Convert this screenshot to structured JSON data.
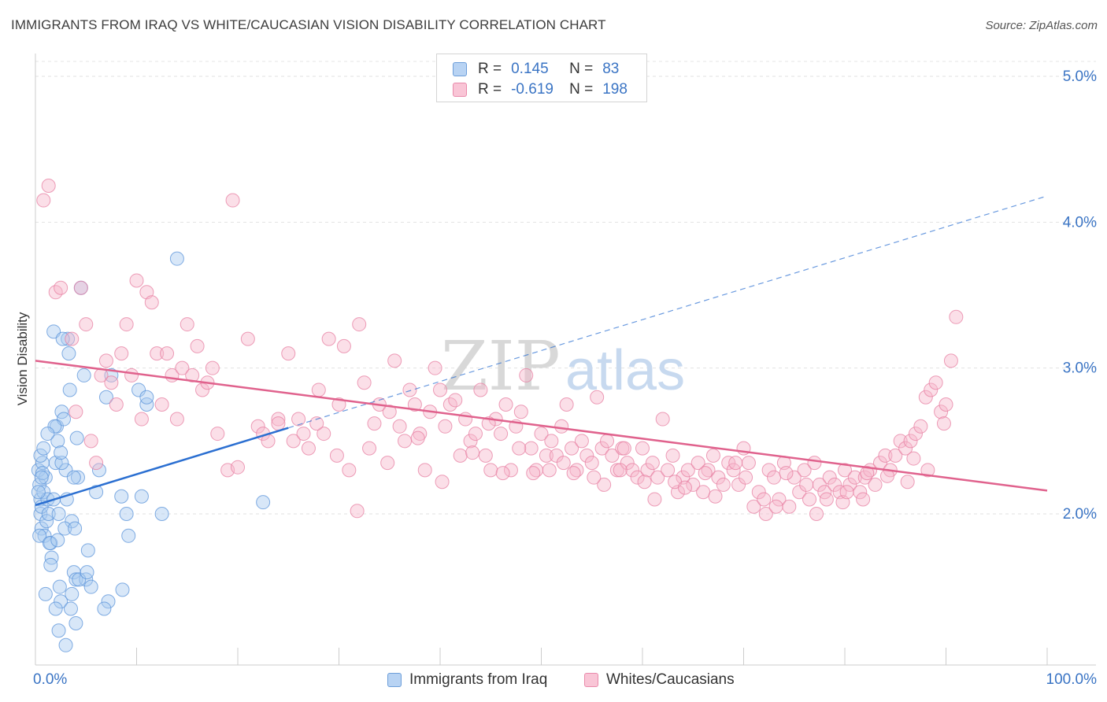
{
  "title": "IMMIGRANTS FROM IRAQ VS WHITE/CAUCASIAN VISION DISABILITY CORRELATION CHART",
  "source": "Source: ZipAtlas.com",
  "legend": {
    "r_label": "R =",
    "n_label": "N =",
    "rows": [
      {
        "r": "0.145",
        "n": "83"
      },
      {
        "r": "-0.619",
        "n": "198"
      }
    ]
  },
  "chart_data": {
    "type": "scatter",
    "title": "IMMIGRANTS FROM IRAQ VS WHITE/CAUCASIAN VISION DISABILITY CORRELATION CHART",
    "xlabel": "",
    "ylabel": "Vision Disability",
    "xlim": [
      0,
      100
    ],
    "ylim": [
      1.0,
      5.2
    ],
    "x_tick_labels": [
      "0.0%",
      "100.0%"
    ],
    "y_ticks": [
      2.0,
      3.0,
      4.0,
      5.0
    ],
    "y_tick_labels": [
      "2.0%",
      "3.0%",
      "4.0%",
      "5.0%"
    ],
    "grid": true,
    "legend_position": "top-center",
    "series": [
      {
        "name": "Immigrants from Iraq",
        "color": "#a9c9f0",
        "stroke": "#5a93d9",
        "line_color": "#2b6fd1",
        "trend": {
          "x0": 0.0,
          "y0": 2.06,
          "x1": 25.0,
          "y1": 2.59,
          "dash_x1": 100.0,
          "dash_y1": 4.18
        },
        "points": [
          [
            0.3,
            2.3
          ],
          [
            0.4,
            2.2
          ],
          [
            0.5,
            2.1
          ],
          [
            0.5,
            2.0
          ],
          [
            0.6,
            1.9
          ],
          [
            0.7,
            2.35
          ],
          [
            0.8,
            2.15
          ],
          [
            0.6,
            2.05
          ],
          [
            0.9,
            1.85
          ],
          [
            1.0,
            2.25
          ],
          [
            1.1,
            1.95
          ],
          [
            1.2,
            2.1
          ],
          [
            1.3,
            2.0
          ],
          [
            0.4,
            1.85
          ],
          [
            0.7,
            2.28
          ],
          [
            0.5,
            2.4
          ],
          [
            1.5,
            1.8
          ],
          [
            1.6,
            1.7
          ],
          [
            1.8,
            2.1
          ],
          [
            2.0,
            2.35
          ],
          [
            2.1,
            2.6
          ],
          [
            2.2,
            2.5
          ],
          [
            2.3,
            2.0
          ],
          [
            2.4,
            1.5
          ],
          [
            2.5,
            1.4
          ],
          [
            2.6,
            2.7
          ],
          [
            2.8,
            2.65
          ],
          [
            3.0,
            2.3
          ],
          [
            3.2,
            3.2
          ],
          [
            3.4,
            2.85
          ],
          [
            3.6,
            1.95
          ],
          [
            3.8,
            1.6
          ],
          [
            4.0,
            1.55
          ],
          [
            4.2,
            2.25
          ],
          [
            4.5,
            3.55
          ],
          [
            4.8,
            2.95
          ],
          [
            5.0,
            1.55
          ],
          [
            5.2,
            1.75
          ],
          [
            5.5,
            1.5
          ],
          [
            6.0,
            2.15
          ],
          [
            6.3,
            2.3
          ],
          [
            2.0,
            1.35
          ],
          [
            2.3,
            1.2
          ],
          [
            3.0,
            1.1
          ],
          [
            3.5,
            1.35
          ],
          [
            4.0,
            1.25
          ],
          [
            7.0,
            2.8
          ],
          [
            7.2,
            1.4
          ],
          [
            7.5,
            2.95
          ],
          [
            8.5,
            2.12
          ],
          [
            9.0,
            2.0
          ],
          [
            9.2,
            1.85
          ],
          [
            10.5,
            2.12
          ],
          [
            11.0,
            2.75
          ],
          [
            12.5,
            2.0
          ],
          [
            14.0,
            3.75
          ],
          [
            22.5,
            2.08
          ],
          [
            1.8,
            3.25
          ],
          [
            2.7,
            3.2
          ],
          [
            3.3,
            3.1
          ],
          [
            1.0,
            1.45
          ],
          [
            1.5,
            1.65
          ],
          [
            2.9,
            1.9
          ],
          [
            3.8,
            2.25
          ],
          [
            0.8,
            2.45
          ],
          [
            1.9,
            2.6
          ],
          [
            2.6,
            2.35
          ],
          [
            3.1,
            2.1
          ],
          [
            3.9,
            1.9
          ],
          [
            4.3,
            1.55
          ],
          [
            10.2,
            2.85
          ],
          [
            11.0,
            2.8
          ],
          [
            0.3,
            2.15
          ],
          [
            0.6,
            2.25
          ],
          [
            1.4,
            1.8
          ],
          [
            2.2,
            1.82
          ],
          [
            3.6,
            1.45
          ],
          [
            4.1,
            2.52
          ],
          [
            5.1,
            1.6
          ],
          [
            8.6,
            1.48
          ],
          [
            1.2,
            2.55
          ],
          [
            2.5,
            2.42
          ],
          [
            6.8,
            1.35
          ]
        ]
      },
      {
        "name": "Whites/Caucasians",
        "color": "#f7b9cd",
        "stroke": "#e77fa2",
        "line_color": "#e0628d",
        "trend": {
          "x0": 0.0,
          "y0": 3.05,
          "x1": 100.0,
          "y1": 2.16
        },
        "points": [
          [
            0.8,
            4.15
          ],
          [
            1.3,
            4.25
          ],
          [
            2.0,
            3.52
          ],
          [
            2.5,
            3.55
          ],
          [
            3.6,
            3.2
          ],
          [
            4.0,
            2.7
          ],
          [
            4.5,
            3.55
          ],
          [
            5.0,
            3.3
          ],
          [
            5.5,
            2.5
          ],
          [
            6.0,
            2.35
          ],
          [
            6.5,
            2.95
          ],
          [
            7.0,
            3.05
          ],
          [
            7.5,
            2.9
          ],
          [
            8.0,
            2.75
          ],
          [
            8.5,
            3.1
          ],
          [
            9.0,
            3.3
          ],
          [
            9.5,
            2.95
          ],
          [
            10.0,
            3.6
          ],
          [
            10.5,
            2.65
          ],
          [
            11.0,
            3.52
          ],
          [
            11.5,
            3.45
          ],
          [
            12.0,
            3.1
          ],
          [
            12.5,
            2.75
          ],
          [
            13.0,
            3.1
          ],
          [
            13.5,
            2.95
          ],
          [
            14.0,
            2.65
          ],
          [
            14.5,
            3.0
          ],
          [
            15.0,
            3.3
          ],
          [
            15.5,
            2.95
          ],
          [
            16.0,
            3.15
          ],
          [
            16.5,
            2.85
          ],
          [
            17.0,
            2.9
          ],
          [
            17.5,
            3.0
          ],
          [
            18.0,
            2.55
          ],
          [
            19.0,
            2.3
          ],
          [
            19.5,
            4.15
          ],
          [
            20.0,
            2.32
          ],
          [
            21.0,
            3.2
          ],
          [
            22.0,
            2.6
          ],
          [
            22.5,
            2.55
          ],
          [
            23.0,
            2.5
          ],
          [
            24.0,
            2.65
          ],
          [
            25.0,
            3.1
          ],
          [
            25.5,
            2.5
          ],
          [
            26.0,
            2.65
          ],
          [
            27.0,
            2.45
          ],
          [
            28.0,
            2.85
          ],
          [
            28.5,
            2.55
          ],
          [
            29.0,
            3.2
          ],
          [
            30.0,
            2.75
          ],
          [
            31.0,
            2.3
          ],
          [
            32.0,
            3.3
          ],
          [
            32.5,
            2.9
          ],
          [
            33.0,
            2.45
          ],
          [
            34.0,
            2.75
          ],
          [
            35.0,
            2.7
          ],
          [
            35.5,
            3.05
          ],
          [
            36.0,
            2.6
          ],
          [
            37.0,
            2.85
          ],
          [
            37.5,
            2.75
          ],
          [
            38.0,
            2.55
          ],
          [
            38.5,
            2.3
          ],
          [
            39.0,
            2.7
          ],
          [
            39.5,
            3.0
          ],
          [
            40.0,
            2.85
          ],
          [
            40.5,
            2.6
          ],
          [
            41.0,
            2.75
          ],
          [
            42.0,
            2.4
          ],
          [
            42.5,
            2.65
          ],
          [
            43.0,
            2.5
          ],
          [
            43.5,
            2.55
          ],
          [
            44.0,
            2.85
          ],
          [
            44.5,
            2.4
          ],
          [
            45.0,
            2.3
          ],
          [
            45.5,
            2.65
          ],
          [
            46.0,
            2.55
          ],
          [
            46.5,
            2.75
          ],
          [
            47.0,
            2.3
          ],
          [
            47.5,
            2.6
          ],
          [
            48.0,
            2.7
          ],
          [
            48.5,
            2.95
          ],
          [
            49.0,
            2.45
          ],
          [
            49.5,
            2.3
          ],
          [
            50.0,
            2.55
          ],
          [
            50.5,
            2.4
          ],
          [
            51.0,
            2.5
          ],
          [
            51.5,
            2.4
          ],
          [
            52.0,
            2.6
          ],
          [
            52.5,
            2.75
          ],
          [
            53.0,
            2.45
          ],
          [
            53.5,
            2.3
          ],
          [
            54.0,
            2.5
          ],
          [
            54.5,
            2.4
          ],
          [
            55.0,
            2.35
          ],
          [
            55.5,
            2.8
          ],
          [
            56.0,
            2.45
          ],
          [
            56.5,
            2.5
          ],
          [
            57.0,
            2.4
          ],
          [
            57.5,
            2.3
          ],
          [
            58.0,
            2.45
          ],
          [
            58.5,
            2.35
          ],
          [
            59.0,
            2.3
          ],
          [
            59.5,
            2.25
          ],
          [
            60.0,
            2.45
          ],
          [
            60.5,
            2.3
          ],
          [
            61.0,
            2.35
          ],
          [
            61.5,
            2.25
          ],
          [
            62.0,
            2.65
          ],
          [
            62.5,
            2.3
          ],
          [
            63.0,
            2.4
          ],
          [
            63.5,
            2.15
          ],
          [
            64.0,
            2.25
          ],
          [
            64.5,
            2.3
          ],
          [
            65.0,
            2.2
          ],
          [
            65.5,
            2.35
          ],
          [
            66.0,
            2.15
          ],
          [
            66.5,
            2.3
          ],
          [
            67.0,
            2.4
          ],
          [
            67.5,
            2.25
          ],
          [
            68.0,
            2.2
          ],
          [
            68.5,
            2.35
          ],
          [
            69.0,
            2.3
          ],
          [
            69.5,
            2.2
          ],
          [
            70.0,
            2.45
          ],
          [
            70.5,
            2.35
          ],
          [
            71.0,
            2.05
          ],
          [
            71.5,
            2.15
          ],
          [
            72.0,
            2.1
          ],
          [
            72.5,
            2.3
          ],
          [
            73.0,
            2.25
          ],
          [
            73.5,
            2.1
          ],
          [
            74.0,
            2.35
          ],
          [
            74.5,
            2.05
          ],
          [
            75.0,
            2.25
          ],
          [
            75.5,
            2.15
          ],
          [
            76.0,
            2.3
          ],
          [
            76.5,
            2.1
          ],
          [
            77.0,
            2.35
          ],
          [
            77.5,
            2.2
          ],
          [
            78.0,
            2.15
          ],
          [
            78.5,
            2.25
          ],
          [
            79.0,
            2.2
          ],
          [
            79.5,
            2.15
          ],
          [
            80.0,
            2.3
          ],
          [
            80.5,
            2.2
          ],
          [
            81.0,
            2.25
          ],
          [
            81.5,
            2.15
          ],
          [
            82.0,
            2.25
          ],
          [
            82.5,
            2.3
          ],
          [
            83.0,
            2.2
          ],
          [
            83.5,
            2.35
          ],
          [
            84.0,
            2.4
          ],
          [
            84.5,
            2.3
          ],
          [
            85.0,
            2.4
          ],
          [
            85.5,
            2.5
          ],
          [
            86.0,
            2.45
          ],
          [
            86.5,
            2.5
          ],
          [
            87.0,
            2.55
          ],
          [
            87.5,
            2.6
          ],
          [
            88.0,
            2.8
          ],
          [
            88.5,
            2.85
          ],
          [
            89.0,
            2.9
          ],
          [
            89.5,
            2.7
          ],
          [
            90.0,
            2.75
          ],
          [
            90.5,
            3.05
          ],
          [
            91.0,
            3.35
          ],
          [
            24.0,
            2.62
          ],
          [
            26.5,
            2.55
          ],
          [
            30.5,
            3.15
          ],
          [
            33.5,
            2.62
          ],
          [
            36.5,
            2.5
          ],
          [
            41.5,
            2.78
          ],
          [
            44.8,
            2.62
          ],
          [
            47.8,
            2.45
          ],
          [
            52.2,
            2.35
          ],
          [
            58.2,
            2.45
          ],
          [
            60.2,
            2.22
          ],
          [
            63.2,
            2.22
          ],
          [
            66.2,
            2.28
          ],
          [
            69.2,
            2.35
          ],
          [
            72.2,
            2.0
          ],
          [
            74.2,
            2.28
          ],
          [
            77.2,
            2.0
          ],
          [
            79.8,
            2.08
          ],
          [
            81.8,
            2.1
          ],
          [
            84.2,
            2.26
          ],
          [
            86.2,
            2.22
          ],
          [
            88.2,
            2.3
          ],
          [
            46.2,
            2.28
          ],
          [
            49.2,
            2.28
          ],
          [
            53.2,
            2.28
          ],
          [
            56.2,
            2.2
          ],
          [
            61.2,
            2.1
          ],
          [
            64.2,
            2.18
          ],
          [
            67.2,
            2.12
          ],
          [
            70.2,
            2.25
          ],
          [
            73.2,
            2.05
          ],
          [
            76.2,
            2.2
          ],
          [
            78.2,
            2.1
          ],
          [
            80.2,
            2.15
          ],
          [
            82.2,
            2.28
          ],
          [
            86.8,
            2.38
          ],
          [
            89.8,
            2.62
          ],
          [
            27.8,
            2.62
          ],
          [
            29.8,
            2.4
          ],
          [
            31.8,
            2.02
          ],
          [
            34.8,
            2.35
          ],
          [
            37.8,
            2.52
          ],
          [
            40.2,
            2.22
          ],
          [
            43.2,
            2.42
          ],
          [
            50.8,
            2.3
          ],
          [
            55.2,
            2.25
          ],
          [
            57.8,
            2.3
          ]
        ]
      }
    ]
  }
}
